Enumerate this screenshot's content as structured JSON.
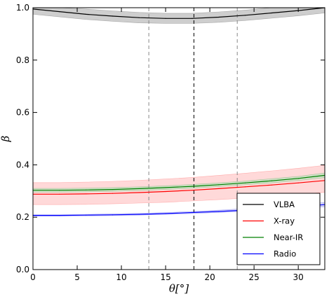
{
  "chart_data": {
    "type": "line",
    "title": "",
    "xlabel": "θ[°]",
    "ylabel": "β",
    "xlim": [
      0,
      33
    ],
    "ylim": [
      0.0,
      1.0
    ],
    "x_ticks": [
      "0",
      "5",
      "10",
      "15",
      "20",
      "25",
      "30"
    ],
    "y_ticks": [
      "0.0",
      "0.2",
      "0.4",
      "0.6",
      "0.8",
      "1.0"
    ],
    "grid": false,
    "legend_position": "bottom-right",
    "reference_lines": [
      {
        "x": 13.1,
        "style": "dashed",
        "color": "#888888"
      },
      {
        "x": 18.2,
        "style": "dashed",
        "color": "#000000"
      },
      {
        "x": 23.1,
        "style": "dashed",
        "color": "#888888"
      }
    ],
    "x": [
      0,
      3,
      6,
      9,
      12,
      15,
      18,
      21,
      24,
      27,
      30,
      33
    ],
    "series": [
      {
        "name": "VLBA",
        "color": "#000000",
        "band_color": "#bdbdbd",
        "values": [
          0.995,
          0.985,
          0.975,
          0.968,
          0.962,
          0.959,
          0.959,
          0.964,
          0.971,
          0.98,
          0.989,
          1.0
        ],
        "lower": [
          0.975,
          0.965,
          0.955,
          0.948,
          0.942,
          0.94,
          0.94,
          0.944,
          0.951,
          0.96,
          0.969,
          0.98
        ],
        "upper": [
          1.0,
          1.0,
          0.995,
          0.988,
          0.982,
          0.979,
          0.979,
          0.984,
          0.991,
          1.0,
          1.0,
          1.0
        ]
      },
      {
        "name": "X-ray",
        "color": "#ff0000",
        "band_color": "#ffcccc",
        "values": [
          0.288,
          0.288,
          0.289,
          0.291,
          0.294,
          0.298,
          0.303,
          0.309,
          0.316,
          0.323,
          0.331,
          0.34
        ],
        "lower": [
          0.248,
          0.248,
          0.249,
          0.251,
          0.254,
          0.257,
          0.262,
          0.267,
          0.273,
          0.28,
          0.287,
          0.295
        ],
        "upper": [
          0.332,
          0.332,
          0.334,
          0.337,
          0.341,
          0.346,
          0.352,
          0.36,
          0.368,
          0.377,
          0.387,
          0.398
        ]
      },
      {
        "name": "Near-IR",
        "color": "#008000",
        "band_color": "#bfe0bf",
        "values": [
          0.303,
          0.303,
          0.304,
          0.306,
          0.309,
          0.313,
          0.318,
          0.324,
          0.331,
          0.339,
          0.348,
          0.36
        ],
        "lower": [
          0.296,
          0.296,
          0.297,
          0.299,
          0.302,
          0.306,
          0.311,
          0.317,
          0.324,
          0.331,
          0.34,
          0.351
        ],
        "upper": [
          0.31,
          0.31,
          0.311,
          0.313,
          0.316,
          0.32,
          0.325,
          0.331,
          0.338,
          0.347,
          0.356,
          0.369
        ]
      },
      {
        "name": "Radio",
        "color": "#0000ff",
        "band_color": "#c8c8f0",
        "values": [
          0.207,
          0.207,
          0.208,
          0.209,
          0.211,
          0.214,
          0.218,
          0.222,
          0.227,
          0.233,
          0.24,
          0.248
        ],
        "lower": [
          0.204,
          0.204,
          0.205,
          0.206,
          0.208,
          0.211,
          0.214,
          0.218,
          0.222,
          0.227,
          0.233,
          0.24
        ],
        "upper": [
          0.21,
          0.21,
          0.211,
          0.213,
          0.215,
          0.218,
          0.222,
          0.227,
          0.233,
          0.24,
          0.248,
          0.257
        ]
      }
    ]
  }
}
